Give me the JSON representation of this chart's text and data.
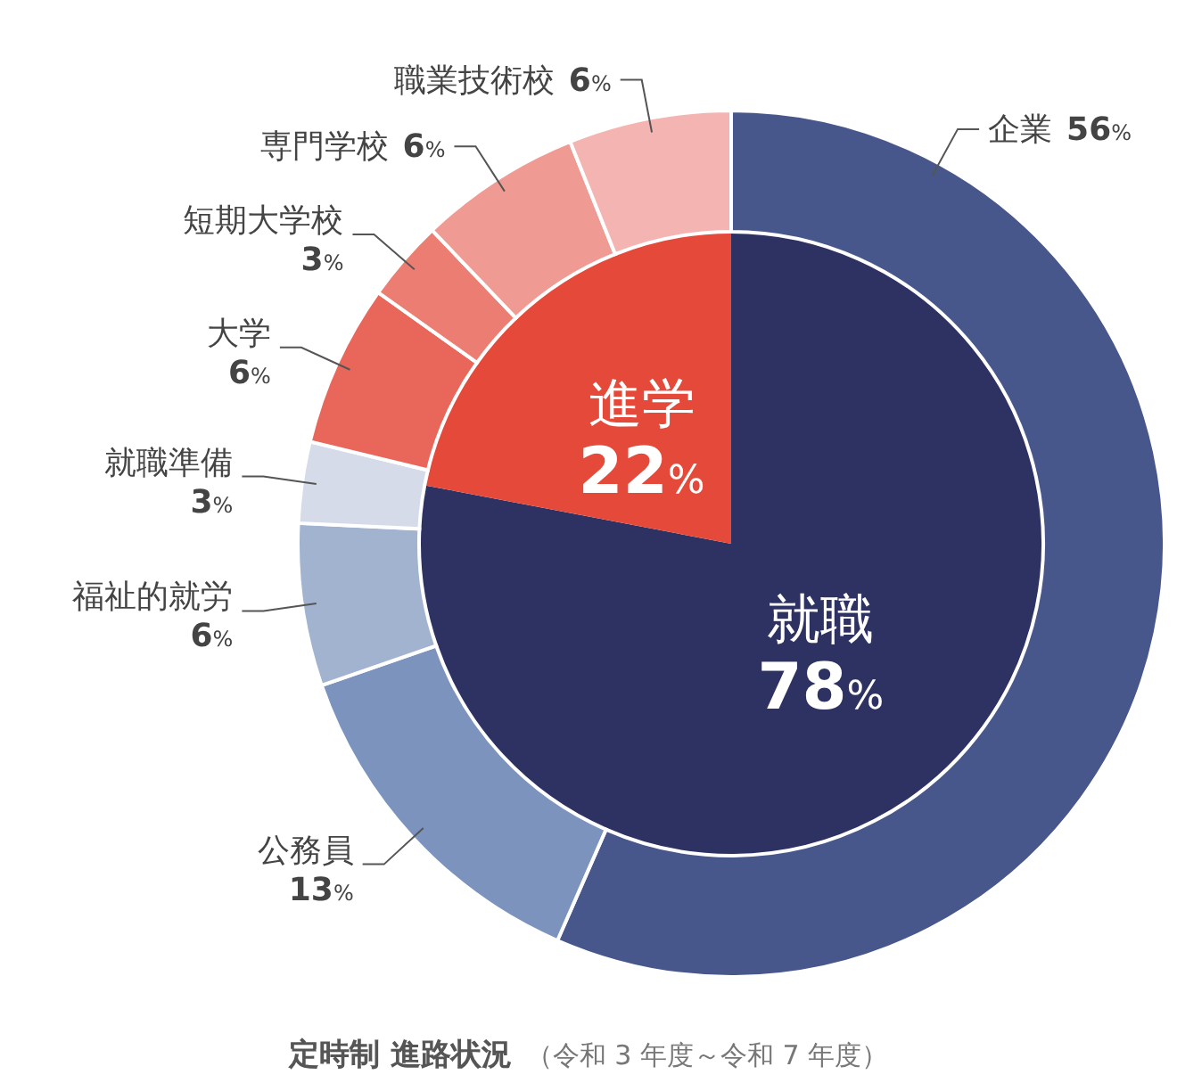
{
  "chart_data": [
    {
      "type": "pie",
      "title": "定時制  進路状況",
      "subtitle": "（令和 3 年度～令和 7 年度）",
      "categories": [
        "就職",
        "進学"
      ],
      "values": [
        78,
        22
      ],
      "colors": [
        "#2e3262",
        "#e5493a"
      ],
      "value_labels": [
        "78%",
        "22%"
      ]
    },
    {
      "type": "donut",
      "categories": [
        "企業",
        "公務員",
        "福祉的就労",
        "就職準備",
        "大学",
        "短期大学校",
        "専門学校",
        "職業技術校"
      ],
      "values": [
        56,
        13,
        6,
        3,
        6,
        3,
        6,
        6
      ],
      "colors": [
        "#48578b",
        "#7b93bd",
        "#a2b3d0",
        "#d5dbe8",
        "#e8675a",
        "#ec7d72",
        "#ef9b94",
        "#f4b5b2"
      ],
      "value_labels": [
        "56%",
        "13%",
        "6%",
        "3%",
        "6%",
        "3%",
        "6%",
        "6%"
      ]
    }
  ]
}
